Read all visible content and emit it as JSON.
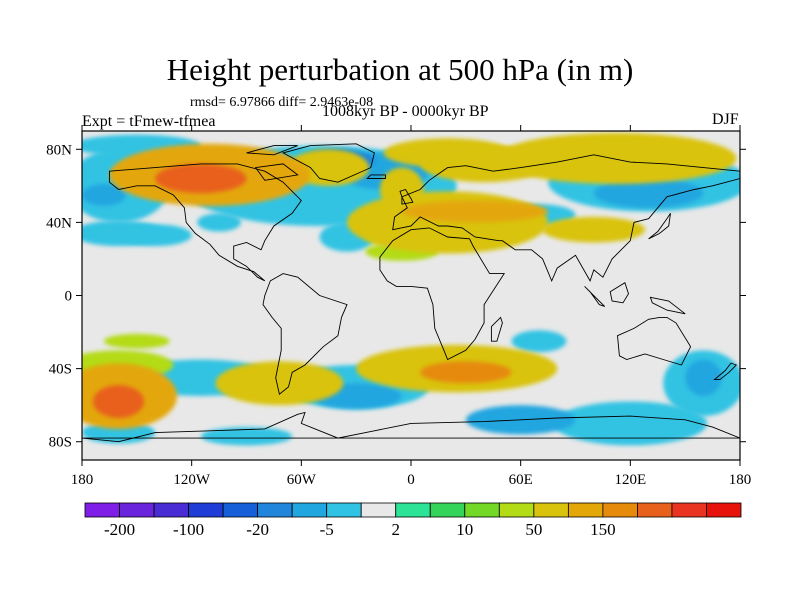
{
  "chart_data": {
    "type": "heatmap",
    "title": "Height perturbation at 500 hPa (in m)",
    "subtitle": "1008kyr BP - 0000kyr BP",
    "stats_text": "rmsd= 6.97866 diff= 2.9463e-08",
    "left_label": "Expt = tFmew-tfmea",
    "right_label": "DJF",
    "xlim": [
      -180,
      180
    ],
    "ylim": [
      -90,
      90
    ],
    "x_ticks": [
      {
        "value": -180,
        "label": "180"
      },
      {
        "value": -120,
        "label": "120W"
      },
      {
        "value": -60,
        "label": "60W"
      },
      {
        "value": 0,
        "label": "0"
      },
      {
        "value": 60,
        "label": "60E"
      },
      {
        "value": 120,
        "label": "120E"
      },
      {
        "value": 180,
        "label": "180"
      }
    ],
    "y_ticks": [
      {
        "value": 80,
        "label": "80N"
      },
      {
        "value": 40,
        "label": "40N"
      },
      {
        "value": 0,
        "label": "0"
      },
      {
        "value": -40,
        "label": "40S"
      },
      {
        "value": -80,
        "label": "80S"
      }
    ],
    "colorbar": {
      "colors": [
        "#7f1ee6",
        "#6a24dc",
        "#4a2cd4",
        "#1f3cd6",
        "#1560d8",
        "#1f86dc",
        "#21a6e0",
        "#30c3e3",
        "#e8e8e8",
        "#2ce396",
        "#34d45a",
        "#73d826",
        "#b3dc16",
        "#d9c30c",
        "#e3a70a",
        "#e68a0c",
        "#e8611a",
        "#e83420",
        "#e8120c"
      ],
      "labels": [
        {
          "boundary": 1,
          "text": "-200"
        },
        {
          "boundary": 3,
          "text": "-100"
        },
        {
          "boundary": 5,
          "text": "-20"
        },
        {
          "boundary": 7,
          "text": "-5"
        },
        {
          "boundary": 9,
          "text": "2"
        },
        {
          "boundary": 11,
          "text": "10"
        },
        {
          "boundary": 13,
          "text": "50"
        },
        {
          "boundary": 15,
          "text": "150"
        }
      ]
    },
    "field_background_color": "#e8e8e8",
    "anomalies": [
      {
        "lon": -110,
        "lat": 66,
        "rx": 55,
        "ry": 17,
        "level": 6
      },
      {
        "lon": -115,
        "lat": 64,
        "rx": 25,
        "ry": 8,
        "level": 8
      },
      {
        "lon": -45,
        "lat": 70,
        "rx": 22,
        "ry": 10,
        "level": 5
      },
      {
        "lon": -5,
        "lat": 58,
        "rx": 12,
        "ry": 12,
        "level": 5
      },
      {
        "lon": 20,
        "lat": 78,
        "rx": 35,
        "ry": 8,
        "level": 5
      },
      {
        "lon": 40,
        "lat": 72,
        "rx": 35,
        "ry": 10,
        "level": 5
      },
      {
        "lon": -50,
        "lat": 60,
        "rx": 75,
        "ry": 22,
        "level": -1
      },
      {
        "lon": -15,
        "lat": 68,
        "rx": 25,
        "ry": 10,
        "level": -2
      },
      {
        "lon": -40,
        "lat": 74,
        "rx": 20,
        "ry": 6,
        "level": -3
      },
      {
        "lon": 112,
        "lat": 75,
        "rx": 66,
        "ry": 14,
        "level": 5
      },
      {
        "lon": 130,
        "lat": 62,
        "rx": 55,
        "ry": 16,
        "level": -1
      },
      {
        "lon": 130,
        "lat": 56,
        "rx": 30,
        "ry": 8,
        "level": -2
      },
      {
        "lon": 70,
        "lat": 44,
        "rx": 20,
        "ry": 6,
        "level": -1
      },
      {
        "lon": 100,
        "lat": 36,
        "rx": 28,
        "ry": 7,
        "level": 5
      },
      {
        "lon": -160,
        "lat": 60,
        "rx": 28,
        "ry": 20,
        "level": -1
      },
      {
        "lon": -168,
        "lat": 55,
        "rx": 12,
        "ry": 6,
        "level": -2
      },
      {
        "lon": -140,
        "lat": 33,
        "rx": 20,
        "ry": 6,
        "level": -1
      },
      {
        "lon": -160,
        "lat": 34,
        "rx": 25,
        "ry": 7,
        "level": -1
      },
      {
        "lon": -105,
        "lat": 40,
        "rx": 12,
        "ry": 5,
        "level": -1
      },
      {
        "lon": -35,
        "lat": 32,
        "rx": 15,
        "ry": 8,
        "level": -1
      },
      {
        "lon": 20,
        "lat": 40,
        "rx": 55,
        "ry": 17,
        "level": 5
      },
      {
        "lon": 15,
        "lat": 32,
        "rx": 40,
        "ry": 6,
        "level": 4
      },
      {
        "lon": 35,
        "lat": 46,
        "rx": 40,
        "ry": 6,
        "level": 6
      },
      {
        "lon": -5,
        "lat": 24,
        "rx": 20,
        "ry": 5,
        "level": 4
      },
      {
        "lon": -160,
        "lat": -55,
        "rx": 32,
        "ry": 18,
        "level": 6
      },
      {
        "lon": -160,
        "lat": -58,
        "rx": 14,
        "ry": 9,
        "level": 8
      },
      {
        "lon": -72,
        "lat": -48,
        "rx": 35,
        "ry": 12,
        "level": 5
      },
      {
        "lon": 25,
        "lat": -40,
        "rx": 55,
        "ry": 13,
        "level": 5
      },
      {
        "lon": 30,
        "lat": -42,
        "rx": 25,
        "ry": 6,
        "level": 7
      },
      {
        "lon": -160,
        "lat": -38,
        "rx": 30,
        "ry": 8,
        "level": 4
      },
      {
        "lon": -150,
        "lat": -25,
        "rx": 18,
        "ry": 4,
        "level": 4
      },
      {
        "lon": -115,
        "lat": -45,
        "rx": 40,
        "ry": 10,
        "level": -1
      },
      {
        "lon": -30,
        "lat": -50,
        "rx": 40,
        "ry": 12,
        "level": -1
      },
      {
        "lon": -30,
        "lat": -55,
        "rx": 25,
        "ry": 7,
        "level": -2
      },
      {
        "lon": 60,
        "lat": -68,
        "rx": 30,
        "ry": 8,
        "level": -2
      },
      {
        "lon": 120,
        "lat": -70,
        "rx": 42,
        "ry": 12,
        "level": -1
      },
      {
        "lon": 70,
        "lat": -25,
        "rx": 15,
        "ry": 6,
        "level": -1
      },
      {
        "lon": 160,
        "lat": -48,
        "rx": 22,
        "ry": 18,
        "level": -1
      },
      {
        "lon": 160,
        "lat": -45,
        "rx": 10,
        "ry": 10,
        "level": -2
      },
      {
        "lon": -160,
        "lat": -75,
        "rx": 20,
        "ry": 6,
        "level": -1
      },
      {
        "lon": -90,
        "lat": -77,
        "rx": 25,
        "ry": 5,
        "level": -1
      },
      {
        "lon": -150,
        "lat": 82,
        "rx": 35,
        "ry": 6,
        "level": -1
      }
    ],
    "landmasses": [
      {
        "name": "North America",
        "points": [
          [
            -165,
            68
          ],
          [
            -140,
            70
          ],
          [
            -115,
            72
          ],
          [
            -95,
            72
          ],
          [
            -80,
            68
          ],
          [
            -70,
            62
          ],
          [
            -60,
            52
          ],
          [
            -65,
            45
          ],
          [
            -75,
            38
          ],
          [
            -80,
            30
          ],
          [
            -82,
            25
          ],
          [
            -90,
            29
          ],
          [
            -97,
            27
          ],
          [
            -97,
            20
          ],
          [
            -90,
            16
          ],
          [
            -84,
            10
          ],
          [
            -80,
            8
          ],
          [
            -86,
            13
          ],
          [
            -95,
            16
          ],
          [
            -105,
            22
          ],
          [
            -110,
            28
          ],
          [
            -118,
            34
          ],
          [
            -123,
            40
          ],
          [
            -124,
            48
          ],
          [
            -130,
            55
          ],
          [
            -140,
            60
          ],
          [
            -150,
            60
          ],
          [
            -160,
            58
          ],
          [
            -165,
            62
          ]
        ]
      },
      {
        "name": "South America",
        "points": [
          [
            -77,
            8
          ],
          [
            -70,
            12
          ],
          [
            -62,
            10
          ],
          [
            -50,
            0
          ],
          [
            -35,
            -5
          ],
          [
            -38,
            -12
          ],
          [
            -40,
            -22
          ],
          [
            -48,
            -28
          ],
          [
            -58,
            -38
          ],
          [
            -65,
            -42
          ],
          [
            -67,
            -50
          ],
          [
            -72,
            -54
          ],
          [
            -74,
            -45
          ],
          [
            -71,
            -30
          ],
          [
            -71,
            -18
          ],
          [
            -76,
            -12
          ],
          [
            -81,
            -5
          ],
          [
            -80,
            0
          ]
        ]
      },
      {
        "name": "Greenland",
        "points": [
          [
            -55,
            82
          ],
          [
            -30,
            83
          ],
          [
            -20,
            78
          ],
          [
            -22,
            70
          ],
          [
            -40,
            62
          ],
          [
            -50,
            64
          ],
          [
            -55,
            70
          ],
          [
            -70,
            78
          ]
        ]
      },
      {
        "name": "Eurasia",
        "points": [
          [
            -10,
            36
          ],
          [
            -9,
            43
          ],
          [
            -2,
            48
          ],
          [
            -5,
            54
          ],
          [
            5,
            58
          ],
          [
            10,
            63
          ],
          [
            20,
            70
          ],
          [
            30,
            71
          ],
          [
            45,
            68
          ],
          [
            60,
            70
          ],
          [
            80,
            73
          ],
          [
            100,
            77
          ],
          [
            120,
            73
          ],
          [
            140,
            72
          ],
          [
            160,
            70
          ],
          [
            180,
            68
          ],
          [
            180,
            64
          ],
          [
            165,
            60
          ],
          [
            155,
            58
          ],
          [
            140,
            54
          ],
          [
            130,
            42
          ],
          [
            122,
            40
          ],
          [
            120,
            30
          ],
          [
            110,
            20
          ],
          [
            105,
            10
          ],
          [
            100,
            14
          ],
          [
            98,
            8
          ],
          [
            90,
            22
          ],
          [
            80,
            15
          ],
          [
            77,
            8
          ],
          [
            72,
            20
          ],
          [
            66,
            25
          ],
          [
            57,
            25
          ],
          [
            50,
            30
          ],
          [
            48,
            30
          ],
          [
            35,
            32
          ],
          [
            28,
            37
          ],
          [
            20,
            38
          ],
          [
            15,
            38
          ],
          [
            5,
            43
          ],
          [
            0,
            38
          ]
        ]
      },
      {
        "name": "Africa",
        "points": [
          [
            -17,
            21
          ],
          [
            -10,
            30
          ],
          [
            0,
            36
          ],
          [
            10,
            37
          ],
          [
            20,
            32
          ],
          [
            32,
            31
          ],
          [
            34,
            27
          ],
          [
            43,
            12
          ],
          [
            51,
            12
          ],
          [
            40,
            -5
          ],
          [
            40,
            -15
          ],
          [
            35,
            -24
          ],
          [
            30,
            -30
          ],
          [
            20,
            -35
          ],
          [
            18,
            -30
          ],
          [
            13,
            -18
          ],
          [
            12,
            -5
          ],
          [
            9,
            4
          ],
          [
            0,
            5
          ],
          [
            -8,
            5
          ],
          [
            -13,
            8
          ],
          [
            -17,
            14
          ]
        ]
      },
      {
        "name": "Australia",
        "points": [
          [
            113,
            -22
          ],
          [
            114,
            -33
          ],
          [
            118,
            -35
          ],
          [
            128,
            -32
          ],
          [
            138,
            -35
          ],
          [
            148,
            -38
          ],
          [
            153,
            -28
          ],
          [
            145,
            -15
          ],
          [
            140,
            -12
          ],
          [
            136,
            -12
          ],
          [
            130,
            -13
          ],
          [
            122,
            -18
          ]
        ]
      },
      {
        "name": "Antarctica",
        "points": [
          [
            -180,
            -78
          ],
          [
            -160,
            -80
          ],
          [
            -140,
            -75
          ],
          [
            -110,
            -74
          ],
          [
            -80,
            -73
          ],
          [
            -62,
            -65
          ],
          [
            -58,
            -64
          ],
          [
            -60,
            -70
          ],
          [
            -40,
            -78
          ],
          [
            -20,
            -74
          ],
          [
            0,
            -70
          ],
          [
            40,
            -69
          ],
          [
            80,
            -67
          ],
          [
            120,
            -66
          ],
          [
            150,
            -68
          ],
          [
            165,
            -72
          ],
          [
            180,
            -78
          ]
        ]
      },
      {
        "name": "Great Britain",
        "points": [
          [
            -5,
            50
          ],
          [
            1,
            51
          ],
          [
            0,
            53
          ],
          [
            -3,
            58
          ],
          [
            -6,
            57
          ],
          [
            -5,
            54
          ]
        ]
      },
      {
        "name": "Madagascar",
        "points": [
          [
            44,
            -25
          ],
          [
            47,
            -25
          ],
          [
            50,
            -15
          ],
          [
            49,
            -12
          ],
          [
            44,
            -17
          ]
        ]
      },
      {
        "name": "Japan",
        "points": [
          [
            130,
            31
          ],
          [
            136,
            34
          ],
          [
            141,
            38
          ],
          [
            142,
            45
          ],
          [
            140,
            42
          ],
          [
            135,
            35
          ]
        ]
      },
      {
        "name": "Borneo",
        "points": [
          [
            109,
            2
          ],
          [
            117,
            7
          ],
          [
            119,
            1
          ],
          [
            116,
            -4
          ],
          [
            110,
            -3
          ]
        ]
      },
      {
        "name": "Sumatra",
        "points": [
          [
            95,
            5
          ],
          [
            106,
            -6
          ],
          [
            103,
            -5
          ],
          [
            98,
            2
          ]
        ]
      },
      {
        "name": "New Guinea",
        "points": [
          [
            131,
            -1
          ],
          [
            141,
            -3
          ],
          [
            150,
            -10
          ],
          [
            140,
            -8
          ],
          [
            132,
            -4
          ]
        ]
      },
      {
        "name": "New Zealand",
        "points": [
          [
            166,
            -46
          ],
          [
            172,
            -41
          ],
          [
            175,
            -37
          ],
          [
            178,
            -38
          ],
          [
            174,
            -42
          ],
          [
            169,
            -46
          ]
        ]
      },
      {
        "name": "Iceland",
        "points": [
          [
            -24,
            64
          ],
          [
            -14,
            64
          ],
          [
            -14,
            66
          ],
          [
            -22,
            66
          ]
        ]
      },
      {
        "name": "Ellesmere",
        "points": [
          [
            -90,
            78
          ],
          [
            -75,
            82
          ],
          [
            -62,
            82
          ],
          [
            -75,
            77
          ]
        ]
      },
      {
        "name": "Baffin",
        "points": [
          [
            -80,
            63
          ],
          [
            -62,
            66
          ],
          [
            -70,
            72
          ],
          [
            -85,
            70
          ]
        ]
      }
    ]
  }
}
